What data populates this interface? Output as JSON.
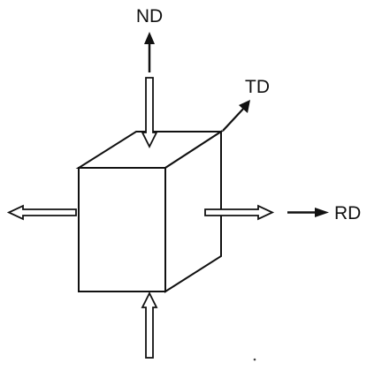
{
  "labels": {
    "normal_direction": "ND",
    "transverse_direction": "TD",
    "rolling_direction": "RD"
  },
  "colors": {
    "line": "#111111",
    "fill": "#ffffff"
  }
}
